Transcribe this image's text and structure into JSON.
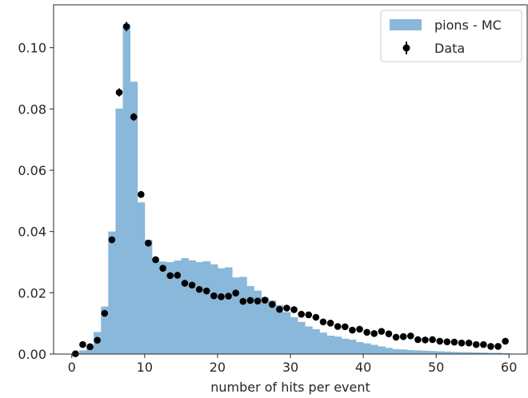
{
  "chart_data": {
    "type": "histogram",
    "xlabel": "number of hits per event",
    "ylabel": "",
    "xlim": [
      -2.5,
      62.5
    ],
    "ylim": [
      0,
      0.114
    ],
    "xticks": [
      0,
      10,
      20,
      30,
      40,
      50,
      60
    ],
    "xtick_labels": [
      "0",
      "10",
      "20",
      "30",
      "40",
      "50",
      "60"
    ],
    "yticks": [
      0.0,
      0.02,
      0.04,
      0.06,
      0.08,
      0.1
    ],
    "ytick_labels": [
      "0.00",
      "0.02",
      "0.04",
      "0.06",
      "0.08",
      "0.10"
    ],
    "legend_position": "top-right",
    "bin_edges_start": 0,
    "bin_width": 1,
    "series": [
      {
        "name": "pions - MC",
        "kind": "filled-histogram",
        "color": "#89b8da",
        "values": [
          0.0002,
          0.0012,
          0.0025,
          0.0072,
          0.0155,
          0.04,
          0.0801,
          0.1075,
          0.0889,
          0.0495,
          0.0373,
          0.0308,
          0.0302,
          0.03,
          0.0305,
          0.0313,
          0.0306,
          0.03,
          0.0303,
          0.0293,
          0.028,
          0.0283,
          0.025,
          0.0252,
          0.0222,
          0.0207,
          0.0185,
          0.0175,
          0.016,
          0.0137,
          0.012,
          0.0105,
          0.009,
          0.0081,
          0.007,
          0.006,
          0.0057,
          0.005,
          0.0047,
          0.0039,
          0.0035,
          0.003,
          0.0025,
          0.002,
          0.0016,
          0.0015,
          0.0013,
          0.0012,
          0.0011,
          0.001,
          0.0009,
          0.0008,
          0.0007,
          0.0006,
          0.0006,
          0.0005,
          0.0005,
          0.0004,
          0.0004,
          0.0003
        ]
      },
      {
        "name": "Data",
        "kind": "errorbar",
        "color": "#000000",
        "x": [
          0.5,
          1.5,
          2.5,
          3.5,
          4.5,
          5.5,
          6.5,
          7.5,
          8.5,
          9.5,
          10.5,
          11.5,
          12.5,
          13.5,
          14.5,
          15.5,
          16.5,
          17.5,
          18.5,
          19.5,
          20.5,
          21.5,
          22.5,
          23.5,
          24.5,
          25.5,
          26.5,
          27.5,
          28.5,
          29.5,
          30.5,
          31.5,
          32.5,
          33.5,
          34.5,
          35.5,
          36.5,
          37.5,
          38.5,
          39.5,
          40.5,
          41.5,
          42.5,
          43.5,
          44.5,
          45.5,
          46.5,
          47.5,
          48.5,
          49.5,
          50.5,
          51.5,
          52.5,
          53.5,
          54.5,
          55.5,
          56.5,
          57.5,
          58.5,
          59.5
        ],
        "y": [
          0.0001,
          0.0031,
          0.0024,
          0.0045,
          0.0133,
          0.0373,
          0.0854,
          0.1069,
          0.0774,
          0.0521,
          0.0362,
          0.0308,
          0.028,
          0.0256,
          0.0257,
          0.0231,
          0.0225,
          0.0211,
          0.0206,
          0.019,
          0.0187,
          0.0189,
          0.0199,
          0.0172,
          0.0175,
          0.0173,
          0.0176,
          0.0162,
          0.0146,
          0.015,
          0.0145,
          0.013,
          0.0128,
          0.012,
          0.0105,
          0.0101,
          0.009,
          0.0089,
          0.0078,
          0.0081,
          0.0071,
          0.0067,
          0.0074,
          0.0066,
          0.0055,
          0.0057,
          0.0059,
          0.0047,
          0.0046,
          0.0047,
          0.0042,
          0.004,
          0.0039,
          0.0036,
          0.0036,
          0.0031,
          0.0031,
          0.0025,
          0.0025,
          0.0042
        ],
        "yerr": [
          0.0002,
          0.0004,
          0.0004,
          0.0005,
          0.0008,
          0.001,
          0.0013,
          0.0015,
          0.0012,
          0.001,
          0.0008,
          0.0007,
          0.0007,
          0.0007,
          0.0007,
          0.0006,
          0.0006,
          0.0006,
          0.0006,
          0.0006,
          0.0006,
          0.0006,
          0.0006,
          0.0006,
          0.0006,
          0.0006,
          0.0006,
          0.0005,
          0.0005,
          0.0005,
          0.0005,
          0.0005,
          0.0005,
          0.0005,
          0.0004,
          0.0004,
          0.0004,
          0.0004,
          0.0004,
          0.0004,
          0.0004,
          0.0004,
          0.0004,
          0.0004,
          0.0003,
          0.0003,
          0.0003,
          0.0003,
          0.0003,
          0.0003,
          0.0003,
          0.0003,
          0.0003,
          0.0003,
          0.0003,
          0.0003,
          0.0003,
          0.0002,
          0.0002,
          0.0003
        ]
      }
    ]
  }
}
